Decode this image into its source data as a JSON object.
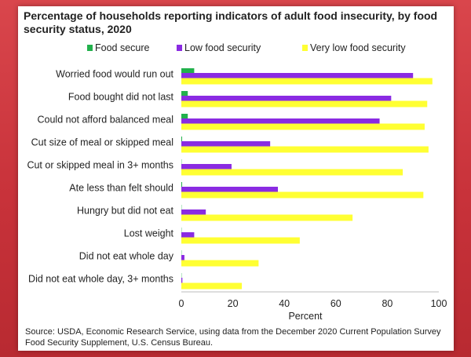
{
  "chart_data": {
    "type": "bar",
    "orientation": "horizontal",
    "title": "Percentage of households reporting indicators of adult food insecurity, by food security status, 2020",
    "xlabel": "Percent",
    "ylabel": "",
    "xlim": [
      0,
      100
    ],
    "xticks": [
      0,
      20,
      40,
      60,
      80,
      100
    ],
    "grid": false,
    "legend_position": "top",
    "categories": [
      "Worried food would run out",
      "Food bought did not last",
      "Could not afford balanced meal",
      "Cut size of meal or skipped meal",
      "Cut or skipped meal in 3+ months",
      "Ate less than felt should",
      "Hungry but did not eat",
      "Lost weight",
      "Did not eat whole day",
      "Did not eat whole day, 3+ months"
    ],
    "series": [
      {
        "name": "Food secure",
        "color": "#22b14c",
        "values": [
          5,
          2.5,
          2.5,
          0.3,
          0.1,
          0.3,
          0.1,
          0.1,
          0.1,
          0.1
        ]
      },
      {
        "name": "Low food security",
        "color": "#8a2be2",
        "values": [
          90,
          81.5,
          77,
          34.5,
          19.5,
          37.5,
          9.5,
          5,
          1.2,
          0.4
        ]
      },
      {
        "name": "Very low food security",
        "color": "#ffff33",
        "values": [
          97.5,
          95.5,
          94.5,
          96,
          86,
          94,
          66.5,
          46,
          30,
          23.5
        ]
      }
    ],
    "source": "Source: USDA, Economic Research Service, using data from the December 2020 Current Population Survey Food Security Supplement, U.S. Census Bureau."
  }
}
